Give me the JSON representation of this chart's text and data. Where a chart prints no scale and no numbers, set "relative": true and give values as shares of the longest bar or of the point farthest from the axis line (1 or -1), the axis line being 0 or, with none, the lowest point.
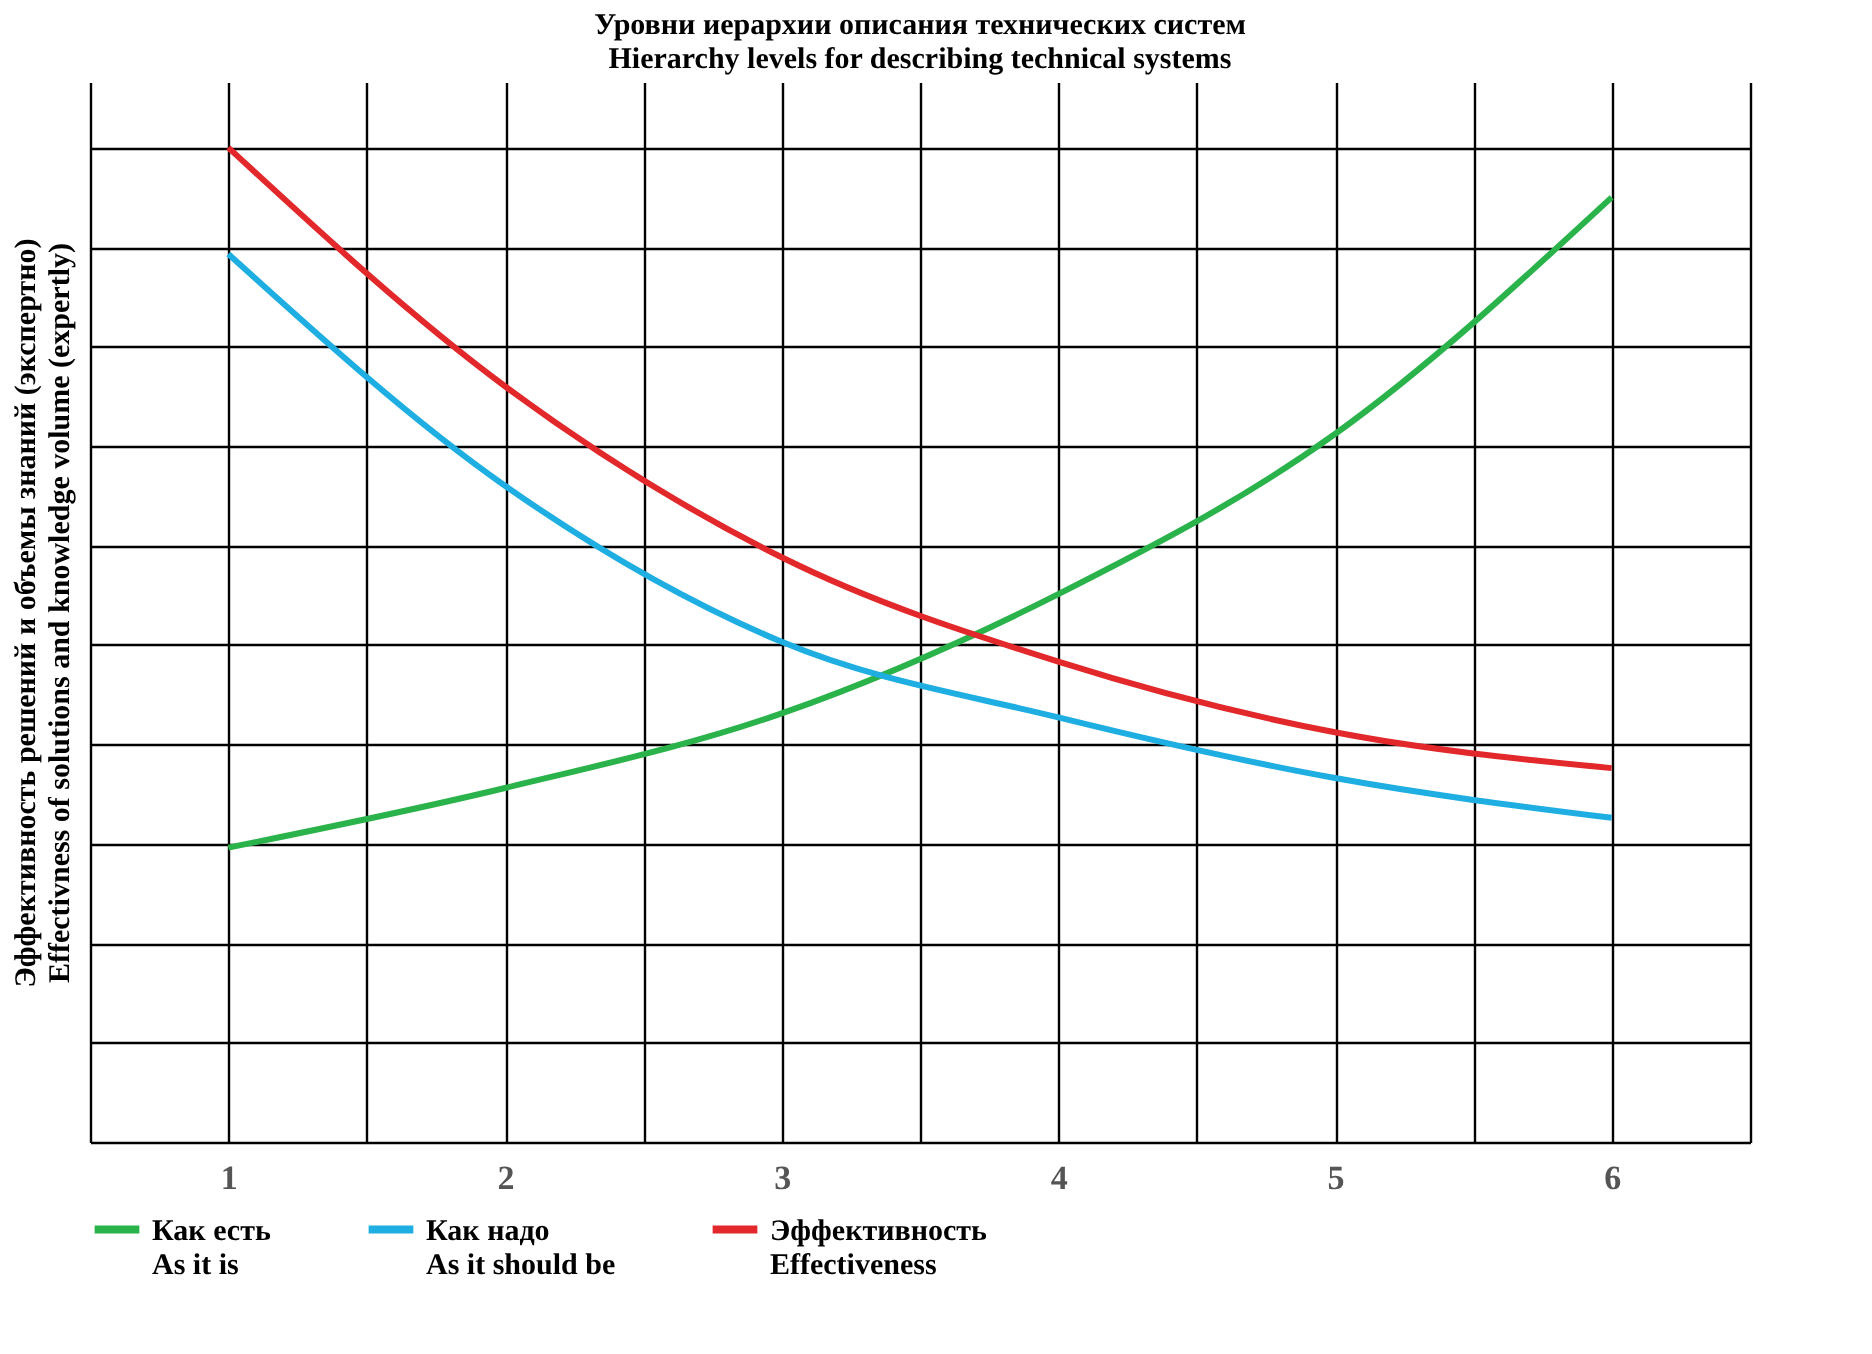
{
  "chart_data": {
    "type": "line",
    "title": "Уровни иерархии описания технических систем\nHierarchy levels for describing technical systems",
    "ylabel": "Эффективность решений и объемы знаний (экспертно)\nEffectivness of solutions and knowledge volume (expertly)",
    "x": [
      1,
      2,
      3,
      4,
      5,
      6
    ],
    "xlim": [
      0.5,
      6.5
    ],
    "xticks": [
      {
        "value": 0.5,
        "label": null
      },
      1,
      {
        "value": 1.5,
        "label": null
      },
      2,
      {
        "value": 2.5,
        "label": null
      },
      3,
      {
        "value": 3.5,
        "label": null
      },
      4,
      {
        "value": 4.5,
        "label": null
      },
      5,
      {
        "value": 5.5,
        "label": null
      },
      6,
      {
        "value": 6.5,
        "label": null
      }
    ],
    "relative": true,
    "grid": true,
    "legend": "bottom",
    "marker": "none",
    "line_style": "solid",
    "series": [
      {
        "name": "Как есть\nAs it is",
        "color": "#2bb34b",
        "values": [
          0.296,
          0.356,
          0.431,
          0.551,
          0.712,
          0.95
        ]
      },
      {
        "name": "Как надо\nAs it should be",
        "color": "#1eaee2",
        "values": [
          0.893,
          0.66,
          0.503,
          0.427,
          0.366,
          0.326
        ]
      },
      {
        "name": "Эффективность\nEffectiveness",
        "color": "#e2282a",
        "values": [
          1.0,
          0.76,
          0.588,
          0.483,
          0.412,
          0.376
        ]
      }
    ]
  }
}
